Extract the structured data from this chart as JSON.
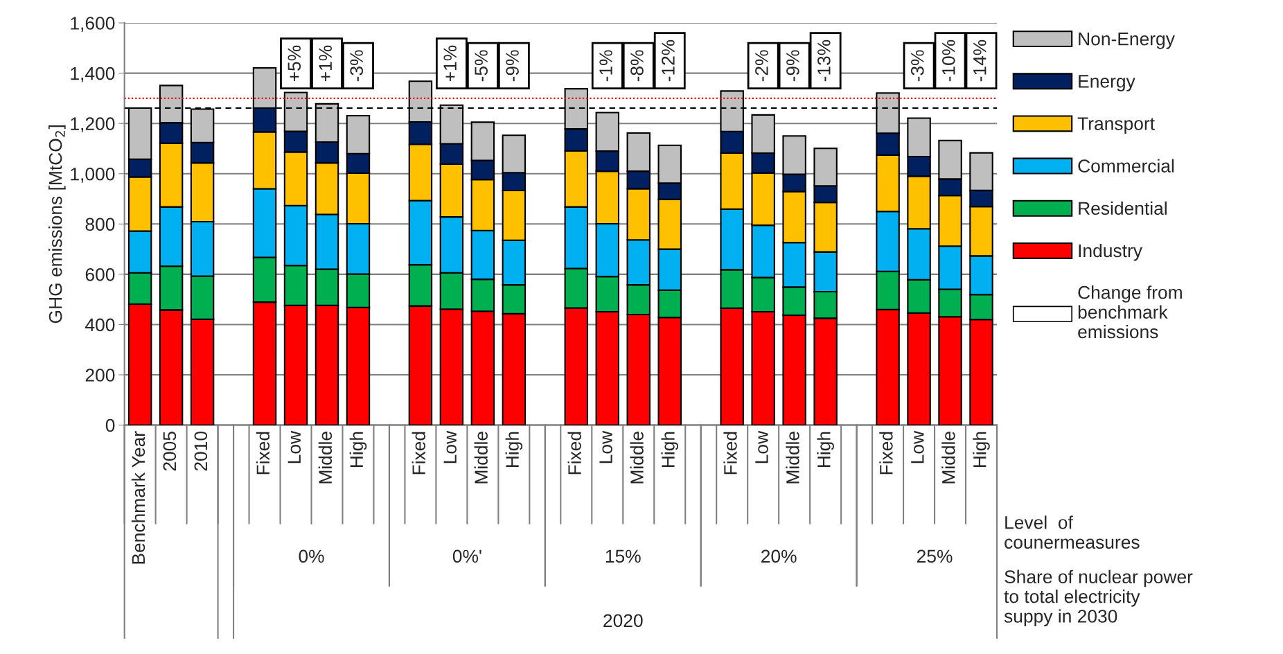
{
  "chart_data": {
    "type": "bar",
    "stacked": true,
    "ylabel": "GHG emissions [MtCO$_{2}$]",
    "categories": [
      "Benchmark Year",
      "2005",
      "2010",
      null,
      "Fixed",
      "Low",
      "Middle",
      "High",
      null,
      "Fixed",
      "Low",
      "Middle",
      "High",
      null,
      "Fixed",
      "Low",
      "Middle",
      "High",
      null,
      "Fixed",
      "Low",
      "Middle",
      "High",
      null,
      "Fixed",
      "Low",
      "Middle",
      "High"
    ],
    "series": [
      {
        "name": "Industry",
        "color": "#ff0000",
        "values": [
          481,
          458,
          421,
          null,
          489,
          476,
          476,
          468,
          null,
          474,
          461,
          453,
          443,
          null,
          466,
          451,
          440,
          428,
          null,
          465,
          451,
          437,
          425,
          null,
          460,
          446,
          431,
          420
        ]
      },
      {
        "name": "Residential",
        "color": "#00b050",
        "values": [
          125,
          174,
          172,
          null,
          178,
          159,
          144,
          133,
          null,
          164,
          145,
          127,
          115,
          null,
          157,
          140,
          118,
          109,
          null,
          153,
          136,
          112,
          106,
          null,
          151,
          132,
          109,
          99
        ]
      },
      {
        "name": "Commercial",
        "color": "#00b0f0",
        "values": [
          166,
          236,
          216,
          null,
          273,
          238,
          218,
          200,
          null,
          255,
          222,
          194,
          177,
          null,
          245,
          210,
          179,
          163,
          null,
          241,
          208,
          177,
          158,
          null,
          239,
          203,
          172,
          154
        ]
      },
      {
        "name": "Transport",
        "color": "#ffc000",
        "values": [
          215,
          253,
          234,
          null,
          226,
          213,
          205,
          201,
          null,
          224,
          210,
          203,
          198,
          null,
          223,
          209,
          203,
          198,
          null,
          223,
          208,
          203,
          197,
          null,
          224,
          209,
          201,
          196
        ]
      },
      {
        "name": "Energy",
        "color": "#002060",
        "values": [
          71,
          82,
          81,
          null,
          95,
          83,
          83,
          78,
          null,
          89,
          81,
          76,
          71,
          null,
          87,
          80,
          70,
          65,
          null,
          86,
          79,
          69,
          66,
          null,
          87,
          78,
          66,
          65
        ]
      },
      {
        "name": "Non-Energy",
        "color": "#bfbfbf",
        "values": [
          203,
          148,
          133,
          null,
          160,
          154,
          152,
          151,
          null,
          162,
          154,
          152,
          149,
          null,
          160,
          153,
          152,
          150,
          null,
          161,
          152,
          152,
          149,
          null,
          160,
          153,
          153,
          149
        ]
      }
    ],
    "ylim": [
      0,
      1600
    ],
    "yticks": [
      0,
      200,
      400,
      600,
      800,
      {
        "value": 1000,
        "label": "1,000"
      },
      {
        "value": 1200,
        "label": "1,200"
      },
      {
        "value": 1400,
        "label": "1,400"
      },
      {
        "value": 1600,
        "label": "1,600"
      }
    ],
    "grid": "y",
    "legend": "right",
    "ref_lines": [
      {
        "axis": "y",
        "value": 1300,
        "color": "#ff0000",
        "line_style": "dotted"
      },
      {
        "axis": "y",
        "value": 1261,
        "color": "#000000",
        "line_style": "dashed"
      }
    ],
    "annotations": [
      "+5%",
      "+1%",
      "-3%",
      "+1%",
      "-5%",
      "-9%",
      "-1%",
      "-8%",
      "-12%",
      "-2%",
      "-9%",
      "-13%",
      "-3%",
      "-10%",
      "-14%",
      "0%",
      "0%'",
      "15%",
      "20%",
      "25%",
      "2020",
      "Level  of\ncounermeasures",
      "Share of nuclear power\nto total electricity\nsuppy in 2030",
      "Change from\nbenchmark\nemissions"
    ]
  }
}
